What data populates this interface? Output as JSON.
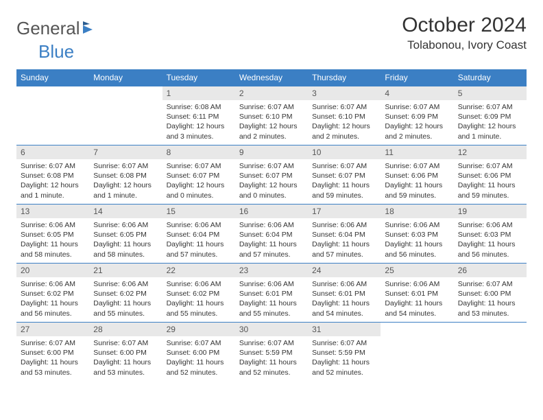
{
  "brand": {
    "text1": "General",
    "text2": "Blue"
  },
  "title": "October 2024",
  "location": "Tolabonou, Ivory Coast",
  "colors": {
    "header_bg": "#3b7fc4",
    "header_fg": "#ffffff",
    "daynum_bg": "#e8e8e8",
    "row_border": "#3b7fc4",
    "text": "#333333",
    "background": "#ffffff"
  },
  "weekdays": [
    "Sunday",
    "Monday",
    "Tuesday",
    "Wednesday",
    "Thursday",
    "Friday",
    "Saturday"
  ],
  "weeks": [
    [
      null,
      null,
      {
        "n": "1",
        "sr": "Sunrise: 6:08 AM",
        "ss": "Sunset: 6:11 PM",
        "dl": "Daylight: 12 hours and 3 minutes."
      },
      {
        "n": "2",
        "sr": "Sunrise: 6:07 AM",
        "ss": "Sunset: 6:10 PM",
        "dl": "Daylight: 12 hours and 2 minutes."
      },
      {
        "n": "3",
        "sr": "Sunrise: 6:07 AM",
        "ss": "Sunset: 6:10 PM",
        "dl": "Daylight: 12 hours and 2 minutes."
      },
      {
        "n": "4",
        "sr": "Sunrise: 6:07 AM",
        "ss": "Sunset: 6:09 PM",
        "dl": "Daylight: 12 hours and 2 minutes."
      },
      {
        "n": "5",
        "sr": "Sunrise: 6:07 AM",
        "ss": "Sunset: 6:09 PM",
        "dl": "Daylight: 12 hours and 1 minute."
      }
    ],
    [
      {
        "n": "6",
        "sr": "Sunrise: 6:07 AM",
        "ss": "Sunset: 6:08 PM",
        "dl": "Daylight: 12 hours and 1 minute."
      },
      {
        "n": "7",
        "sr": "Sunrise: 6:07 AM",
        "ss": "Sunset: 6:08 PM",
        "dl": "Daylight: 12 hours and 1 minute."
      },
      {
        "n": "8",
        "sr": "Sunrise: 6:07 AM",
        "ss": "Sunset: 6:07 PM",
        "dl": "Daylight: 12 hours and 0 minutes."
      },
      {
        "n": "9",
        "sr": "Sunrise: 6:07 AM",
        "ss": "Sunset: 6:07 PM",
        "dl": "Daylight: 12 hours and 0 minutes."
      },
      {
        "n": "10",
        "sr": "Sunrise: 6:07 AM",
        "ss": "Sunset: 6:07 PM",
        "dl": "Daylight: 11 hours and 59 minutes."
      },
      {
        "n": "11",
        "sr": "Sunrise: 6:07 AM",
        "ss": "Sunset: 6:06 PM",
        "dl": "Daylight: 11 hours and 59 minutes."
      },
      {
        "n": "12",
        "sr": "Sunrise: 6:07 AM",
        "ss": "Sunset: 6:06 PM",
        "dl": "Daylight: 11 hours and 59 minutes."
      }
    ],
    [
      {
        "n": "13",
        "sr": "Sunrise: 6:06 AM",
        "ss": "Sunset: 6:05 PM",
        "dl": "Daylight: 11 hours and 58 minutes."
      },
      {
        "n": "14",
        "sr": "Sunrise: 6:06 AM",
        "ss": "Sunset: 6:05 PM",
        "dl": "Daylight: 11 hours and 58 minutes."
      },
      {
        "n": "15",
        "sr": "Sunrise: 6:06 AM",
        "ss": "Sunset: 6:04 PM",
        "dl": "Daylight: 11 hours and 57 minutes."
      },
      {
        "n": "16",
        "sr": "Sunrise: 6:06 AM",
        "ss": "Sunset: 6:04 PM",
        "dl": "Daylight: 11 hours and 57 minutes."
      },
      {
        "n": "17",
        "sr": "Sunrise: 6:06 AM",
        "ss": "Sunset: 6:04 PM",
        "dl": "Daylight: 11 hours and 57 minutes."
      },
      {
        "n": "18",
        "sr": "Sunrise: 6:06 AM",
        "ss": "Sunset: 6:03 PM",
        "dl": "Daylight: 11 hours and 56 minutes."
      },
      {
        "n": "19",
        "sr": "Sunrise: 6:06 AM",
        "ss": "Sunset: 6:03 PM",
        "dl": "Daylight: 11 hours and 56 minutes."
      }
    ],
    [
      {
        "n": "20",
        "sr": "Sunrise: 6:06 AM",
        "ss": "Sunset: 6:02 PM",
        "dl": "Daylight: 11 hours and 56 minutes."
      },
      {
        "n": "21",
        "sr": "Sunrise: 6:06 AM",
        "ss": "Sunset: 6:02 PM",
        "dl": "Daylight: 11 hours and 55 minutes."
      },
      {
        "n": "22",
        "sr": "Sunrise: 6:06 AM",
        "ss": "Sunset: 6:02 PM",
        "dl": "Daylight: 11 hours and 55 minutes."
      },
      {
        "n": "23",
        "sr": "Sunrise: 6:06 AM",
        "ss": "Sunset: 6:01 PM",
        "dl": "Daylight: 11 hours and 55 minutes."
      },
      {
        "n": "24",
        "sr": "Sunrise: 6:06 AM",
        "ss": "Sunset: 6:01 PM",
        "dl": "Daylight: 11 hours and 54 minutes."
      },
      {
        "n": "25",
        "sr": "Sunrise: 6:06 AM",
        "ss": "Sunset: 6:01 PM",
        "dl": "Daylight: 11 hours and 54 minutes."
      },
      {
        "n": "26",
        "sr": "Sunrise: 6:07 AM",
        "ss": "Sunset: 6:00 PM",
        "dl": "Daylight: 11 hours and 53 minutes."
      }
    ],
    [
      {
        "n": "27",
        "sr": "Sunrise: 6:07 AM",
        "ss": "Sunset: 6:00 PM",
        "dl": "Daylight: 11 hours and 53 minutes."
      },
      {
        "n": "28",
        "sr": "Sunrise: 6:07 AM",
        "ss": "Sunset: 6:00 PM",
        "dl": "Daylight: 11 hours and 53 minutes."
      },
      {
        "n": "29",
        "sr": "Sunrise: 6:07 AM",
        "ss": "Sunset: 6:00 PM",
        "dl": "Daylight: 11 hours and 52 minutes."
      },
      {
        "n": "30",
        "sr": "Sunrise: 6:07 AM",
        "ss": "Sunset: 5:59 PM",
        "dl": "Daylight: 11 hours and 52 minutes."
      },
      {
        "n": "31",
        "sr": "Sunrise: 6:07 AM",
        "ss": "Sunset: 5:59 PM",
        "dl": "Daylight: 11 hours and 52 minutes."
      },
      null,
      null
    ]
  ]
}
